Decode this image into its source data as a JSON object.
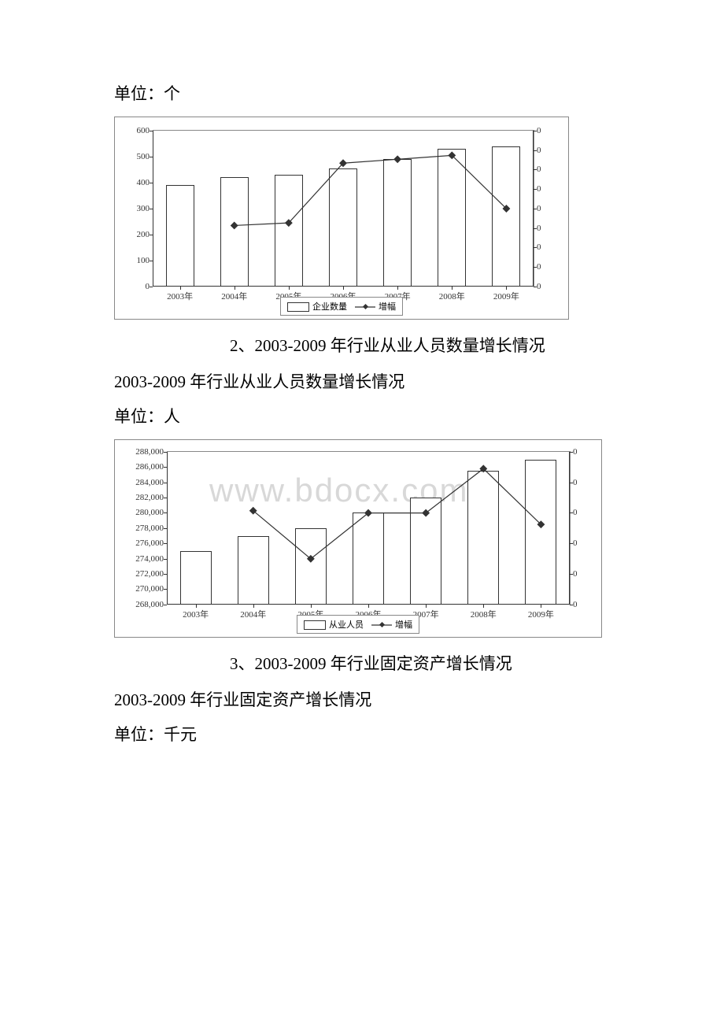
{
  "unit1": "单位：个",
  "chart1": {
    "type": "bar+line",
    "categories": [
      "2003年",
      "2004年",
      "2005年",
      "2006年",
      "2007年",
      "2008年",
      "2009年"
    ],
    "bar_values": [
      390,
      420,
      430,
      455,
      490,
      530,
      540
    ],
    "line_values": [
      null,
      235,
      245,
      475,
      490,
      505,
      300
    ],
    "y_ticks": [
      "0",
      "100",
      "200",
      "300",
      "400",
      "500",
      "600"
    ],
    "r_ticks": [
      "0",
      "0",
      "0",
      "0",
      "0",
      "0",
      "0",
      "0",
      "0"
    ],
    "legend_bar": "企业数量",
    "legend_line": "增幅",
    "ylim": [
      0,
      600
    ],
    "bar_color": "#ffffff",
    "bar_border": "#333333",
    "line_color": "#333333",
    "background": "#ffffff",
    "border_color": "#888888",
    "font_size": 11
  },
  "heading2": "2、2003-2009 年行业从业人员数量增长情况",
  "subtitle2": "2003-2009 年行业从业人员数量增长情况",
  "unit2": "单位：人",
  "chart2": {
    "type": "bar+line",
    "categories": [
      "2003年",
      "2004年",
      "2005年",
      "2006年",
      "2007年",
      "2008年",
      "2009年"
    ],
    "bar_values": [
      275000,
      277000,
      278000,
      280000,
      282000,
      285500,
      287000
    ],
    "line_values": [
      null,
      280300,
      274000,
      280000,
      280000,
      285800,
      278500
    ],
    "y_ticks": [
      "268,000",
      "270,000",
      "272,000",
      "274,000",
      "276,000",
      "278,000",
      "280,000",
      "282,000",
      "284,000",
      "286,000",
      "288,000"
    ],
    "r_ticks": [
      "0",
      "0",
      "0",
      "0",
      "0",
      "0"
    ],
    "legend_bar": "从业人员",
    "legend_line": "增幅",
    "ylim": [
      268000,
      288000
    ],
    "bar_color": "#ffffff",
    "bar_border": "#333333",
    "line_color": "#333333",
    "background": "#ffffff",
    "border_color": "#888888",
    "font_size": 11
  },
  "watermark": "www.bdocx.com",
  "heading3": "3、2003-2009 年行业固定资产增长情况",
  "subtitle3": "2003-2009 年行业固定资产增长情况",
  "unit3": "单位：千元"
}
